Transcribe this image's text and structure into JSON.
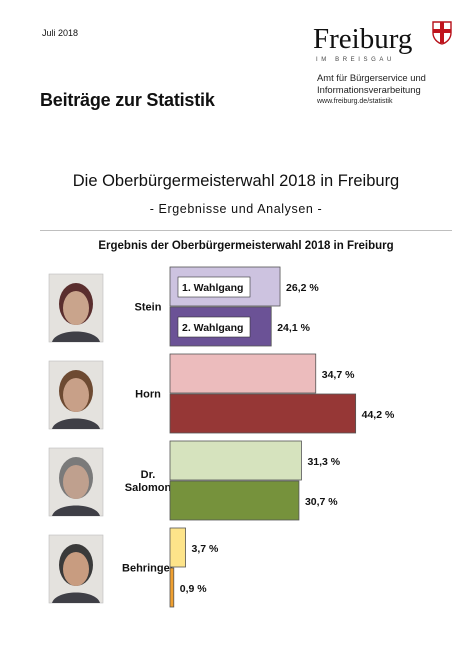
{
  "header": {
    "date": "Juli 2018",
    "series_title": "Beiträge zur Statistik",
    "logo_word": "Freiburg",
    "logo_subtitle": "IM BREISGAU",
    "office_line1": "Amt für Bürgerservice und",
    "office_line2": "Informationsverarbeitung",
    "office_url": "www.freiburg.de/statistik"
  },
  "document": {
    "title": "Die Oberbürgermeisterwahl 2018 in Freiburg",
    "subtitle": "- Ergebnisse und Analysen -"
  },
  "chart_data": {
    "type": "bar",
    "orientation": "horizontal",
    "title": "Ergebnis der Oberbürgermeisterwahl  2018 in Freiburg",
    "categories": [
      "Stein",
      "Horn",
      "Dr. Salomon",
      "Behringer"
    ],
    "category_labels": [
      [
        "Stein"
      ],
      [
        "Horn"
      ],
      [
        "Dr.",
        "Salomon"
      ],
      [
        "Behringer"
      ]
    ],
    "series": [
      {
        "name": "1. Wahlgang",
        "values": [
          26.2,
          34.7,
          31.3,
          3.7
        ],
        "labels": [
          "26,2 %",
          "34,7 %",
          "31,3 %",
          "3,7 %"
        ]
      },
      {
        "name": "2. Wahlgang",
        "values": [
          24.1,
          44.2,
          30.7,
          0.9
        ],
        "labels": [
          "24,1 %",
          "44,2 %",
          "30,7 %",
          "0,9 %"
        ]
      }
    ],
    "colors": [
      [
        "#cdc3e0",
        "#6b5296"
      ],
      [
        "#ecbcbd",
        "#963736"
      ],
      [
        "#d6e3be",
        "#76923c"
      ],
      [
        "#fde48a",
        "#f0a030"
      ]
    ],
    "xlim": [
      0,
      50
    ],
    "legend": "inside first category bars",
    "grid": false
  }
}
